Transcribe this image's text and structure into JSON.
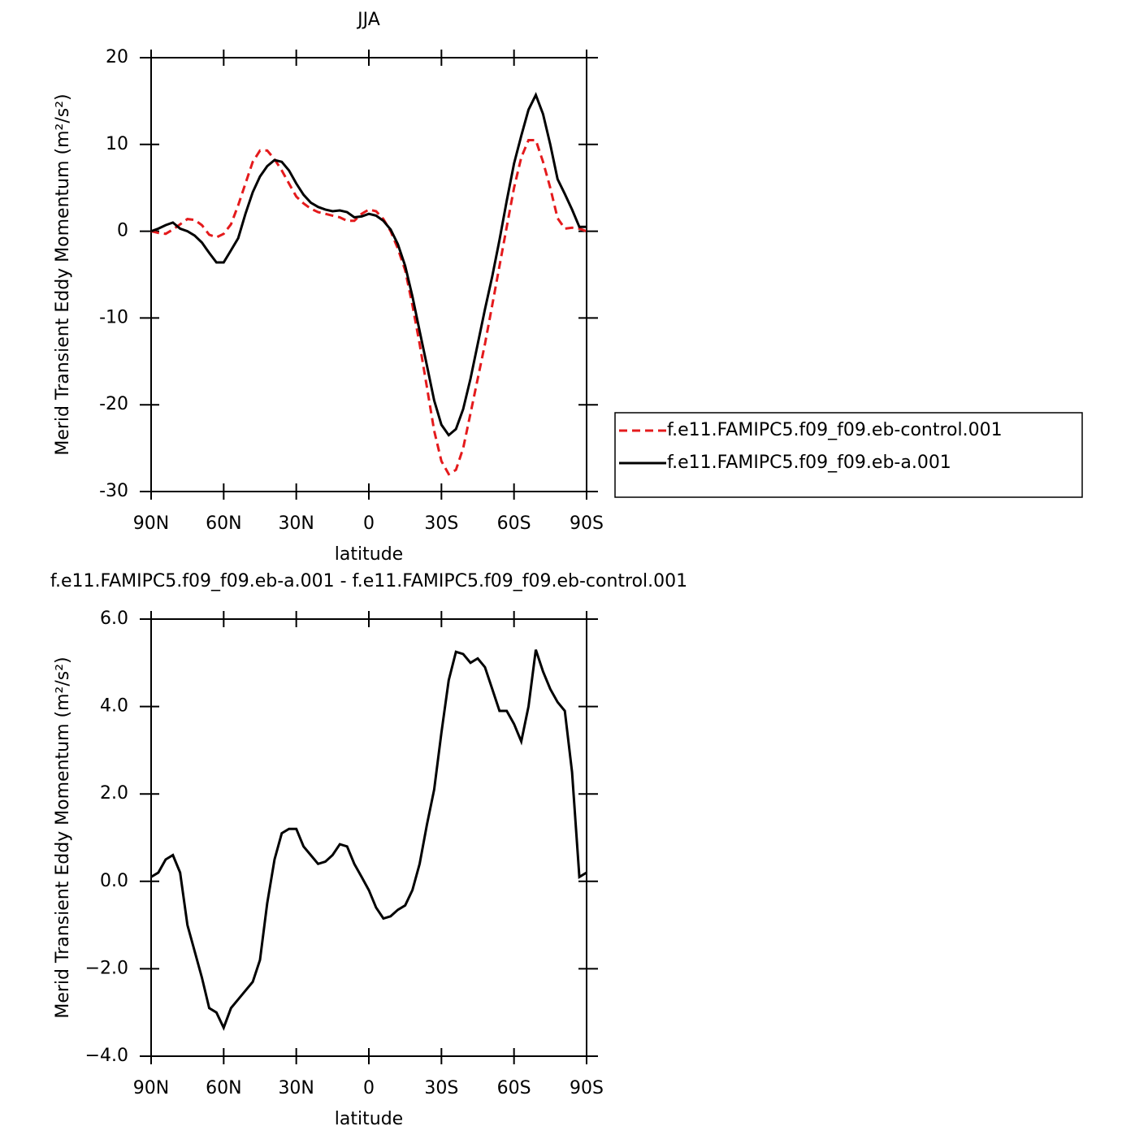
{
  "chart_data": [
    {
      "type": "line",
      "title": "JJA",
      "xlabel": "latitude",
      "ylabel": "Merid Transient Eddy Momentum (m²/s²)",
      "x": [
        90,
        87,
        84,
        81,
        78,
        75,
        72,
        69,
        66,
        63,
        60,
        57,
        54,
        51,
        48,
        45,
        42,
        39,
        36,
        33,
        30,
        27,
        24,
        21,
        18,
        15,
        12,
        9,
        6,
        3,
        0,
        -3,
        -6,
        -9,
        -12,
        -15,
        -18,
        -21,
        -24,
        -27,
        -30,
        -33,
        -36,
        -39,
        -42,
        -45,
        -48,
        -51,
        -54,
        -57,
        -60,
        -63,
        -66,
        -69,
        -72,
        -75,
        -78,
        -81,
        -84,
        -87,
        -90
      ],
      "series": [
        {
          "name": "f.e11.FAMIPC5.f09_f09.eb-control.001",
          "color": "#e41a1c",
          "dashed": true,
          "values": [
            0,
            -0.2,
            -0.3,
            0.2,
            0.8,
            1.4,
            1.3,
            0.7,
            -0.4,
            -0.7,
            -0.3,
            0.8,
            3.0,
            5.5,
            8.0,
            9.3,
            9.3,
            8.3,
            7.0,
            5.5,
            4.0,
            3.2,
            2.6,
            2.2,
            2.0,
            1.8,
            1.6,
            1.2,
            1.2,
            2.0,
            2.5,
            2.3,
            1.4,
            0,
            -2.0,
            -4.5,
            -8.5,
            -13,
            -18,
            -23,
            -26.5,
            -28.0,
            -27.5,
            -25,
            -21,
            -17,
            -13,
            -8.5,
            -4.0,
            0.5,
            5,
            8.5,
            10.5,
            10.5,
            8,
            5,
            1.5,
            0.3,
            0.4,
            0.3,
            0
          ]
        },
        {
          "name": "f.e11.FAMIPC5.f09_f09.eb-a.001",
          "color": "#000000",
          "dashed": false,
          "values": [
            0,
            0.3,
            0.7,
            1.0,
            0.3,
            0,
            -0.5,
            -1.3,
            -2.5,
            -3.6,
            -3.6,
            -2.2,
            -0.8,
            2.0,
            4.5,
            6.3,
            7.5,
            8.2,
            8.0,
            7.0,
            5.5,
            4.2,
            3.3,
            2.8,
            2.5,
            2.3,
            2.4,
            2.2,
            1.6,
            1.7,
            2.0,
            1.8,
            1.2,
            0.2,
            -1.5,
            -4.0,
            -7.5,
            -11.5,
            -15.5,
            -19.5,
            -22.3,
            -23.5,
            -22.8,
            -20.5,
            -17,
            -13,
            -9.0,
            -5.2,
            -1.0,
            3.5,
            7.8,
            11.0,
            14.0,
            15.7,
            13.5,
            10,
            6,
            4.3,
            2.5,
            0.5,
            0.5
          ]
        }
      ],
      "xlim": [
        90,
        -90
      ],
      "xticks": [
        {
          "value": 90,
          "label": "90N"
        },
        {
          "value": 60,
          "label": "60N"
        },
        {
          "value": 30,
          "label": "30N"
        },
        0,
        {
          "value": -30,
          "label": "30S"
        },
        {
          "value": -60,
          "label": "60S"
        },
        {
          "value": -90,
          "label": "90S"
        }
      ],
      "ylim": [
        -30,
        20
      ],
      "yticks": [
        -30,
        -20,
        -10,
        0,
        10,
        20
      ],
      "legend": "right"
    },
    {
      "type": "line",
      "title": "f.e11.FAMIPC5.f09_f09.eb-a.001 - f.e11.FAMIPC5.f09_f09.eb-control.001",
      "xlabel": "latitude",
      "ylabel": "Merid Transient Eddy Momentum (m²/s²)",
      "x": [
        90,
        87,
        84,
        81,
        78,
        75,
        72,
        69,
        66,
        63,
        60,
        57,
        54,
        51,
        48,
        45,
        42,
        39,
        36,
        33,
        30,
        27,
        24,
        21,
        18,
        15,
        12,
        9,
        6,
        3,
        0,
        -3,
        -6,
        -9,
        -12,
        -15,
        -18,
        -21,
        -24,
        -27,
        -30,
        -33,
        -36,
        -39,
        -42,
        -45,
        -48,
        -51,
        -54,
        -57,
        -60,
        -63,
        -66,
        -69,
        -72,
        -75,
        -78,
        -81,
        -84,
        -87,
        -90
      ],
      "series": [
        {
          "color": "#000000",
          "dashed": false,
          "values": [
            0.1,
            0.2,
            0.5,
            0.6,
            0.2,
            -1.0,
            -1.6,
            -2.2,
            -2.9,
            -3.0,
            -3.35,
            -2.9,
            -2.7,
            -2.5,
            -2.3,
            -1.8,
            -0.5,
            0.5,
            1.1,
            1.2,
            1.2,
            0.8,
            0.6,
            0.4,
            0.45,
            0.6,
            0.85,
            0.8,
            0.4,
            0.1,
            -0.2,
            -0.6,
            -0.85,
            -0.8,
            -0.65,
            -0.55,
            -0.2,
            0.4,
            1.3,
            2.1,
            3.4,
            4.6,
            5.25,
            5.2,
            5.0,
            5.1,
            4.9,
            4.4,
            3.9,
            3.9,
            3.6,
            3.2,
            4.0,
            5.3,
            4.8,
            4.4,
            4.1,
            3.9,
            2.5,
            0.1,
            0.2
          ]
        }
      ],
      "xlim": [
        90,
        -90
      ],
      "xticks": [
        {
          "value": 90,
          "label": "90N"
        },
        {
          "value": 60,
          "label": "60N"
        },
        {
          "value": 30,
          "label": "30N"
        },
        0,
        {
          "value": -30,
          "label": "30S"
        },
        {
          "value": -60,
          "label": "60S"
        },
        {
          "value": -90,
          "label": "90S"
        }
      ],
      "ylim": [
        -4,
        6
      ],
      "yticks": [
        {
          "value": -4,
          "label": "−4.0"
        },
        {
          "value": -2,
          "label": "−2.0"
        },
        {
          "value": 0,
          "label": "0.0"
        },
        {
          "value": 2,
          "label": "2.0"
        },
        {
          "value": 4,
          "label": "4.0"
        },
        {
          "value": 6,
          "label": "6.0"
        }
      ]
    }
  ]
}
